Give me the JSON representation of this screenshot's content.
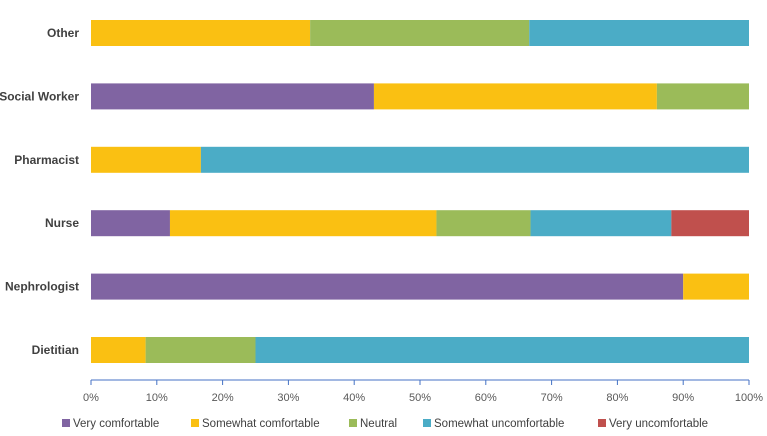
{
  "chart_data": {
    "type": "bar",
    "orientation": "horizontal",
    "stacked": true,
    "percent": true,
    "categories": [
      "Other",
      "Social Worker",
      "Pharmacist",
      "Nurse",
      "Nephrologist",
      "Dietitian"
    ],
    "series": [
      {
        "name": "Very comfortable",
        "color": "#8064a2",
        "values": [
          0,
          43,
          0,
          12,
          90,
          0
        ]
      },
      {
        "name": "Somewhat comfortable",
        "color": "#fac012",
        "values": [
          33.3,
          43,
          16.7,
          40.5,
          10,
          8.3
        ]
      },
      {
        "name": "Neutral",
        "color": "#9bbb59",
        "values": [
          33.3,
          14,
          0,
          14.3,
          0,
          16.7
        ]
      },
      {
        "name": "Somewhat uncomfortable",
        "color": "#4bacc6",
        "values": [
          33.4,
          0,
          83.3,
          21.4,
          0,
          75
        ]
      },
      {
        "name": "Very uncomfortable",
        "color": "#c0504d",
        "values": [
          0,
          0,
          0,
          11.8,
          0,
          0
        ]
      }
    ],
    "x_ticks": [
      "0%",
      "10%",
      "20%",
      "30%",
      "40%",
      "50%",
      "60%",
      "70%",
      "80%",
      "90%",
      "100%"
    ],
    "xlim": [
      0,
      100
    ],
    "grid": false,
    "legend_position": "bottom"
  }
}
